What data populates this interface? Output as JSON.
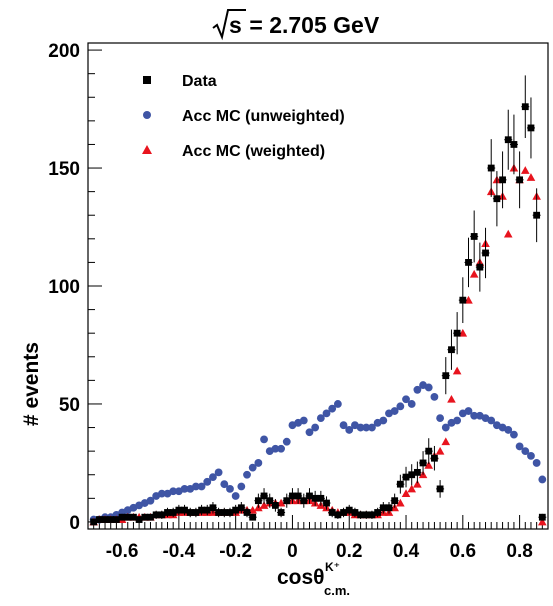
{
  "chart_data": {
    "type": "scatter",
    "title": "√s = 2.705 GeV",
    "title_sqrt_symbol": "√",
    "title_s": "s",
    "title_rest": " = 2.705 GeV",
    "xlabel": "cosθ",
    "xlabel_main": "cosθ",
    "xlabel_superscript": "K⁺",
    "xlabel_subscript": "c.m.",
    "ylabel": "# events",
    "xlim": [
      -0.72,
      0.9
    ],
    "ylim": [
      -3,
      203
    ],
    "x_ticks": [
      -0.6,
      -0.4,
      -0.2,
      0,
      0.2,
      0.4,
      0.6,
      0.8
    ],
    "x_tick_labels": [
      "-0.6",
      "-0.4",
      "-0.2",
      "0",
      "0.2",
      "0.4",
      "0.6",
      "0.8"
    ],
    "y_ticks": [
      0,
      50,
      100,
      150,
      200
    ],
    "y_tick_labels": [
      "0",
      "50",
      "100",
      "150",
      "200"
    ],
    "grid": false,
    "legend_position": "top-left",
    "colors": {
      "data": "#000000",
      "unweighted": "#3f55a5",
      "weighted": "#e8141e"
    },
    "series": [
      {
        "name": "Data",
        "marker": "square",
        "x": [
          -0.7,
          -0.68,
          -0.66,
          -0.64,
          -0.62,
          -0.6,
          -0.58,
          -0.56,
          -0.54,
          -0.52,
          -0.5,
          -0.48,
          -0.46,
          -0.44,
          -0.42,
          -0.4,
          -0.38,
          -0.36,
          -0.34,
          -0.32,
          -0.3,
          -0.28,
          -0.26,
          -0.24,
          -0.22,
          -0.2,
          -0.18,
          -0.16,
          -0.14,
          -0.12,
          -0.1,
          -0.08,
          -0.06,
          -0.04,
          -0.02,
          0.0,
          0.02,
          0.04,
          0.06,
          0.08,
          0.1,
          0.12,
          0.14,
          0.16,
          0.18,
          0.2,
          0.22,
          0.24,
          0.26,
          0.28,
          0.3,
          0.32,
          0.34,
          0.36,
          0.38,
          0.4,
          0.42,
          0.44,
          0.46,
          0.48,
          0.5,
          0.52,
          0.54,
          0.56,
          0.58,
          0.6,
          0.62,
          0.64,
          0.66,
          0.68,
          0.7,
          0.72,
          0.74,
          0.76,
          0.78,
          0.8,
          0.82,
          0.84,
          0.86,
          0.88
        ],
        "y": [
          0,
          1,
          1,
          1,
          1,
          2,
          2,
          2,
          1,
          2,
          2,
          3,
          3,
          4,
          4,
          5,
          5,
          4,
          4,
          5,
          5,
          6,
          4,
          4,
          4,
          5,
          6,
          4,
          2,
          9,
          11,
          9,
          7,
          4,
          9,
          11,
          11,
          9,
          11,
          10,
          10,
          8,
          4,
          3,
          4,
          5,
          4,
          3,
          3,
          3,
          4,
          6,
          6,
          9,
          16,
          19,
          20,
          21,
          25,
          30,
          27,
          14,
          62,
          73,
          80,
          94,
          110,
          121,
          108,
          114,
          150,
          137,
          145,
          162,
          160,
          145,
          176,
          167,
          130,
          2
        ]
      },
      {
        "name": "Acc MC (unweighted)",
        "marker": "circle",
        "x": [
          -0.7,
          -0.68,
          -0.66,
          -0.64,
          -0.62,
          -0.6,
          -0.58,
          -0.56,
          -0.54,
          -0.52,
          -0.5,
          -0.48,
          -0.46,
          -0.44,
          -0.42,
          -0.4,
          -0.38,
          -0.36,
          -0.34,
          -0.32,
          -0.3,
          -0.28,
          -0.26,
          -0.24,
          -0.22,
          -0.2,
          -0.18,
          -0.16,
          -0.14,
          -0.12,
          -0.1,
          -0.08,
          -0.06,
          -0.04,
          -0.02,
          0.0,
          0.02,
          0.04,
          0.06,
          0.08,
          0.1,
          0.12,
          0.14,
          0.16,
          0.18,
          0.2,
          0.22,
          0.24,
          0.26,
          0.28,
          0.3,
          0.32,
          0.34,
          0.36,
          0.38,
          0.4,
          0.42,
          0.44,
          0.46,
          0.48,
          0.5,
          0.52,
          0.54,
          0.56,
          0.58,
          0.6,
          0.62,
          0.64,
          0.66,
          0.68,
          0.7,
          0.72,
          0.74,
          0.76,
          0.78,
          0.8,
          0.82,
          0.84,
          0.86,
          0.88
        ],
        "y": [
          1,
          1,
          2,
          2,
          3,
          4,
          5,
          6,
          7,
          8,
          9,
          11,
          12,
          12,
          13,
          13,
          14,
          14,
          15,
          15,
          17,
          19,
          21,
          16,
          14,
          11,
          15,
          20,
          23,
          25,
          35,
          30,
          31,
          31,
          34,
          41,
          42,
          43,
          38,
          40,
          44,
          46,
          48,
          50,
          41,
          39,
          41,
          40,
          40,
          40,
          42,
          43,
          46,
          47,
          49,
          52,
          50,
          56,
          58,
          57,
          53,
          44,
          40,
          42,
          43,
          46,
          47,
          45,
          45,
          44,
          43,
          41,
          40,
          39,
          37,
          32,
          30,
          28,
          25,
          18
        ]
      },
      {
        "name": "Acc MC (weighted)",
        "marker": "triangle",
        "x": [
          -0.7,
          -0.68,
          -0.66,
          -0.64,
          -0.62,
          -0.6,
          -0.58,
          -0.56,
          -0.54,
          -0.52,
          -0.5,
          -0.48,
          -0.46,
          -0.44,
          -0.42,
          -0.4,
          -0.38,
          -0.36,
          -0.34,
          -0.32,
          -0.3,
          -0.28,
          -0.26,
          -0.24,
          -0.22,
          -0.2,
          -0.18,
          -0.16,
          -0.14,
          -0.12,
          -0.1,
          -0.08,
          -0.06,
          -0.04,
          -0.02,
          0.0,
          0.02,
          0.04,
          0.06,
          0.08,
          0.1,
          0.12,
          0.14,
          0.16,
          0.18,
          0.2,
          0.22,
          0.24,
          0.26,
          0.28,
          0.3,
          0.32,
          0.34,
          0.36,
          0.38,
          0.4,
          0.42,
          0.44,
          0.46,
          0.48,
          0.5,
          0.52,
          0.54,
          0.56,
          0.58,
          0.6,
          0.62,
          0.64,
          0.66,
          0.68,
          0.7,
          0.72,
          0.74,
          0.76,
          0.78,
          0.8,
          0.82,
          0.84,
          0.86,
          0.88
        ],
        "y": [
          0,
          1,
          1,
          1,
          1,
          1,
          2,
          2,
          2,
          2,
          2,
          3,
          3,
          3,
          3,
          4,
          4,
          4,
          4,
          4,
          4,
          4,
          4,
          4,
          4,
          4,
          5,
          5,
          5,
          6,
          7,
          8,
          8,
          8,
          9,
          9,
          9,
          9,
          9,
          8,
          7,
          6,
          5,
          4,
          4,
          4,
          3,
          3,
          3,
          3,
          3,
          4,
          4,
          6,
          8,
          12,
          14,
          16,
          20,
          24,
          28,
          30,
          34,
          52,
          64,
          80,
          94,
          105,
          110,
          118,
          140,
          145,
          138,
          122,
          150,
          145,
          149,
          146,
          138,
          0
        ]
      }
    ]
  }
}
